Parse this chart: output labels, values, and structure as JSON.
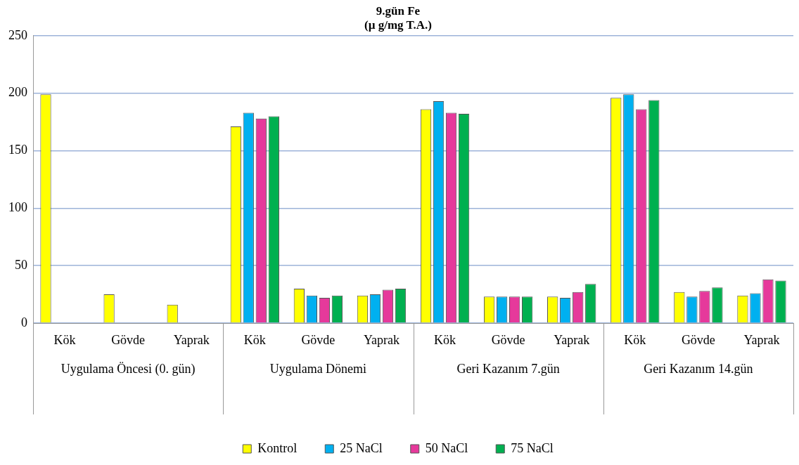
{
  "chart_data": {
    "type": "bar",
    "title": "9.gün Fe\n(µ g/mg T.A.)",
    "categories": [
      "Kök",
      "Gövde",
      "Yaprak",
      "Kök",
      "Gövde",
      "Yaprak",
      "Kök",
      "Gövde",
      "Yaprak",
      "Kök",
      "Gövde",
      "Yaprak"
    ],
    "annotations": [
      "Uygulama Öncesi (0. gün)",
      "Uygulama Dönemi",
      "Geri Kazanım 7.gün",
      "Geri Kazanım 14.gün"
    ],
    "series": [
      {
        "name": "Kontrol",
        "color": "#ffff00",
        "values": [
          199,
          25,
          16,
          171,
          30,
          24,
          186,
          23,
          23,
          196,
          27,
          24
        ]
      },
      {
        "name": "25 NaCl",
        "color": "#00b0f0",
        "values": [
          null,
          null,
          null,
          183,
          24,
          25,
          193,
          23,
          22,
          199,
          23,
          26
        ]
      },
      {
        "name": "50 NaCl",
        "color": "#e6399b",
        "values": [
          null,
          null,
          null,
          178,
          22,
          29,
          183,
          23,
          27,
          186,
          28,
          38
        ]
      },
      {
        "name": "75 NaCl",
        "color": "#00b050",
        "values": [
          null,
          null,
          null,
          180,
          24,
          30,
          182,
          23,
          34,
          194,
          31,
          37
        ]
      }
    ],
    "ylim": [
      0,
      250
    ],
    "yticks": [
      0,
      50,
      100,
      150,
      200,
      250
    ],
    "grid": "y",
    "legend": "bottom"
  }
}
